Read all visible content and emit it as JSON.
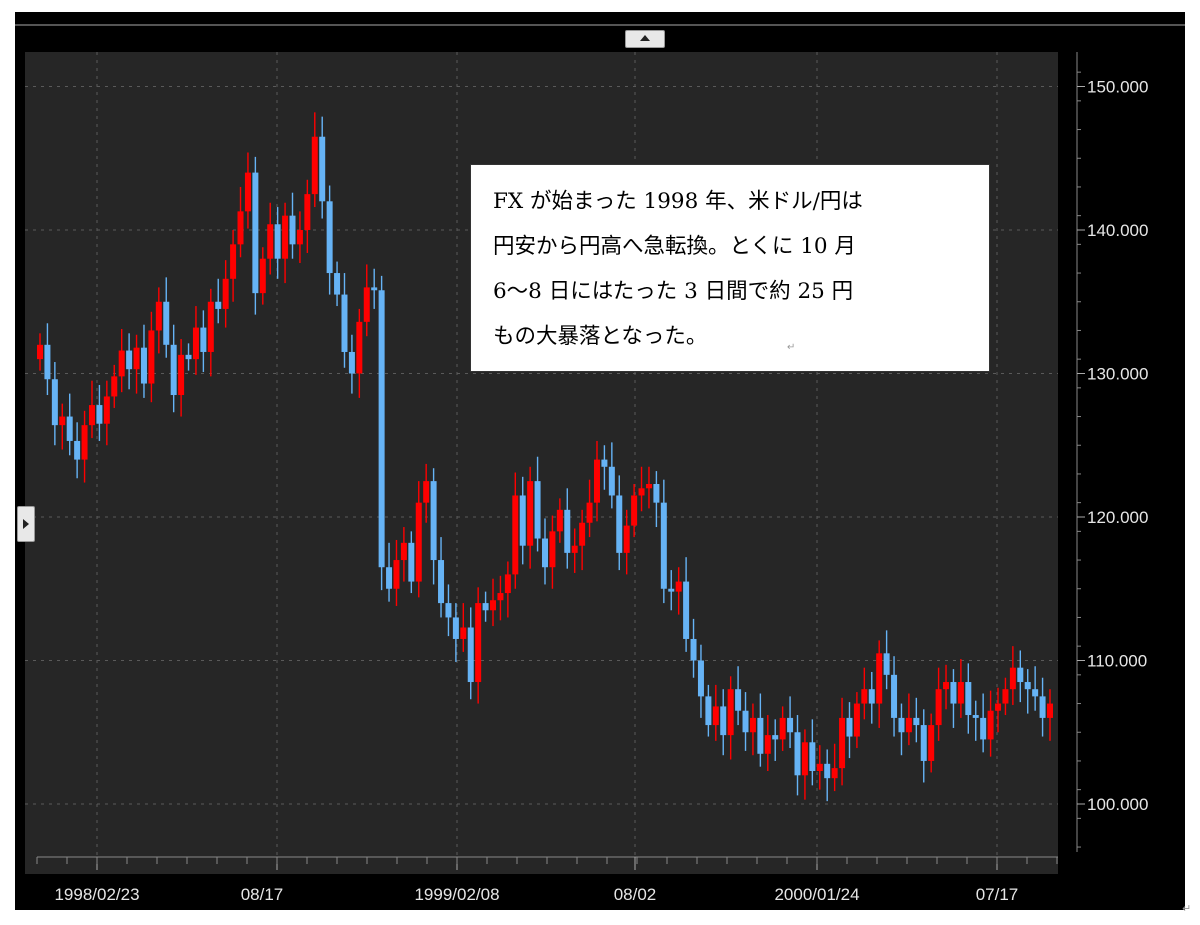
{
  "chart_data": {
    "type": "candlestick",
    "title": "",
    "xlabel": "",
    "ylabel": "",
    "ylim": [
      95,
      150
    ],
    "y_ticks": [
      100,
      110,
      120,
      130,
      140,
      150
    ],
    "y_tick_labels": [
      "100.000",
      "110.000",
      "120.000",
      "130.000",
      "140.000",
      "150.000"
    ],
    "x_tick_labels": [
      "1998/02/23",
      "08/17",
      "1999/02/08",
      "08/02",
      "2000/01/24",
      "07/17"
    ],
    "grid": true,
    "up_color": "#ff0000",
    "down_color": "#66b3f5",
    "series": [
      {
        "closes": [
          132.0,
          129.6,
          126.4,
          127.0,
          125.3,
          124.0,
          126.4,
          127.8,
          126.5,
          128.4,
          129.8,
          131.6,
          130.3,
          131.8,
          129.3,
          133.0,
          135.0,
          132.0,
          128.5,
          131.3,
          131.0,
          133.2,
          131.5,
          135.0,
          134.5,
          136.6,
          139.0,
          141.3,
          144.0,
          135.6,
          138.0,
          140.4,
          138.0,
          141.0,
          139.0,
          140.0,
          142.5,
          146.5,
          142.0,
          137.0,
          135.5,
          131.5,
          130.0,
          133.6,
          136.0,
          135.8,
          116.5,
          115.0,
          117.0,
          118.2,
          115.5,
          121.0,
          122.5,
          117.0,
          114.0,
          113.0,
          111.5,
          112.3,
          108.5,
          114.0,
          113.5,
          114.2,
          114.7,
          116.0,
          121.5,
          118.0,
          122.5,
          118.5,
          116.5,
          119.0,
          120.5,
          117.5,
          118.0,
          119.6,
          121.0,
          124.0,
          123.5,
          121.5,
          117.5,
          119.4,
          121.5,
          122.0,
          122.3,
          121.0,
          115.0,
          114.8,
          115.5,
          111.5,
          110.0,
          107.5,
          105.5,
          106.8,
          104.8,
          108.0,
          106.5,
          105.0,
          106.0,
          103.5,
          104.8,
          104.5,
          106.0,
          105.0,
          102.0,
          104.3,
          102.3,
          102.8,
          101.8,
          102.5,
          106.0,
          104.7,
          107.0,
          108.0,
          107.0,
          110.5,
          109.0,
          106.0,
          105.0,
          106.0,
          105.5,
          103.0,
          105.5,
          108.0,
          108.5,
          107.0,
          108.5,
          106.2,
          106.0,
          104.5,
          106.5,
          107.0,
          108.0,
          109.5,
          108.5,
          108.0,
          107.5,
          106.0,
          107.0
        ]
      }
    ],
    "annotations": [
      "FXが始まった1998年、米ドル/円は円安から円高へ急転換。とくに10月6〜8日にはたった3日間で約25円もの大暴落となった。"
    ]
  },
  "annotation": {
    "text": "FX が始まった 1998 年、米ドル/円は\n円安から円高へ急転換。とくに 10 月\n6〜8 日にはたった 3 日間で約 25 円\nもの大暴落となった。"
  },
  "controls": {
    "collapse_icon": "triangle-up-icon",
    "expand_icon": "triangle-right-icon"
  },
  "marks": {
    "return_mark": "↵"
  }
}
